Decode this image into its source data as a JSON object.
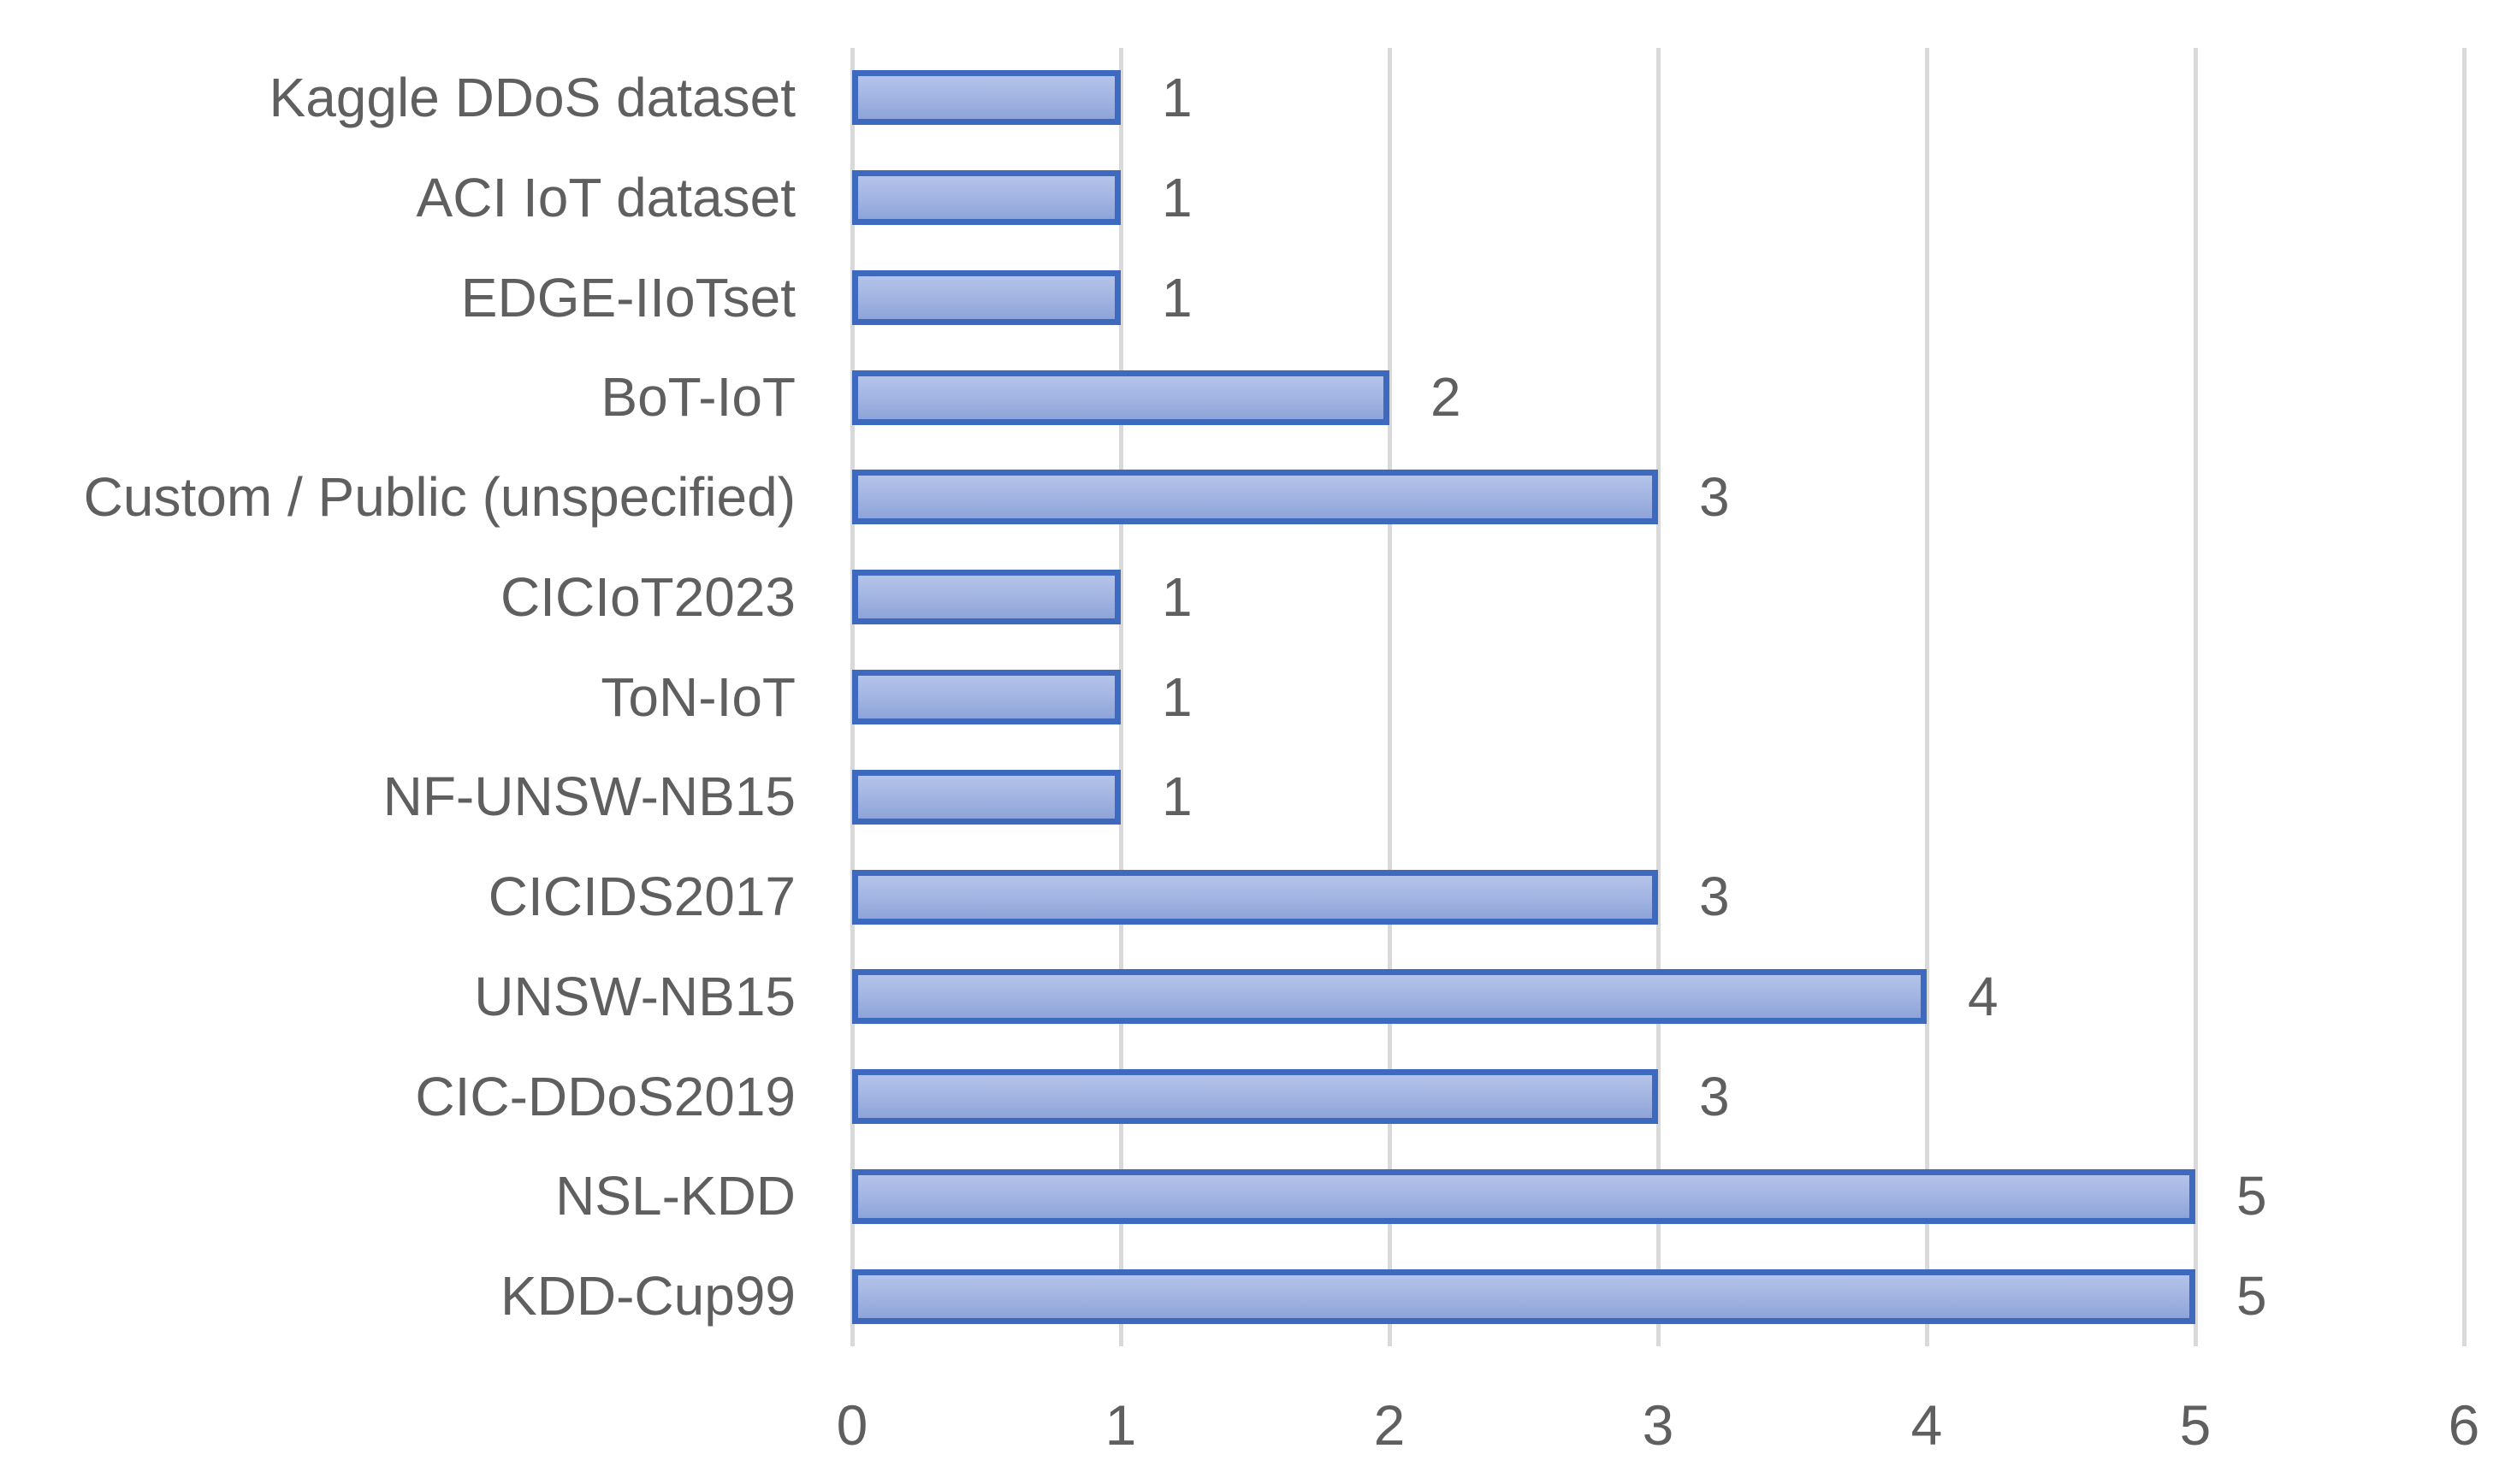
{
  "chart_data": {
    "type": "bar",
    "orientation": "horizontal",
    "title": "",
    "xlabel": "",
    "ylabel": "",
    "categories": [
      "Kaggle DDoS dataset",
      "ACI IoT dataset",
      "EDGE-IIoTset",
      "BoT-IoT",
      "Custom / Public (unspecified)",
      "CICIoT2023",
      "ToN-IoT",
      "NF-UNSW-NB15",
      "CICIDS2017",
      "UNSW-NB15",
      "CIC-DDoS2019",
      "NSL-KDD",
      "KDD-Cup99"
    ],
    "values": [
      1,
      1,
      1,
      2,
      3,
      1,
      1,
      1,
      3,
      4,
      3,
      5,
      5
    ],
    "data_labels": [
      "1",
      "1",
      "1",
      "2",
      "3",
      "1",
      "1",
      "1",
      "3",
      "4",
      "3",
      "5",
      "5"
    ],
    "xlim": [
      0,
      6
    ],
    "x_ticks": [
      0,
      1,
      2,
      3,
      4,
      5,
      6
    ],
    "grid": "vertical-gridlines-on",
    "legend": "none",
    "colors": {
      "bar_border": "#3d69be",
      "bar_fill_top": "#b4c3e9",
      "bar_fill_bottom": "#8ea4d9",
      "gridline": "#d9d9d9",
      "text": "#5f5f5f",
      "background": "#ffffff"
    }
  }
}
